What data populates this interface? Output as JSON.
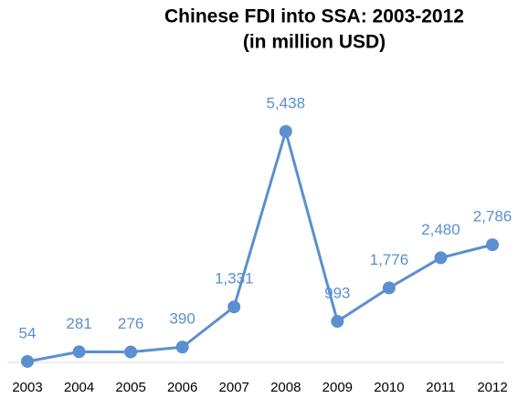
{
  "chart_data": {
    "type": "line",
    "title": "Chinese FDI into SSA: 2003-2012",
    "subtitle": "(in million USD)",
    "categories": [
      "2003",
      "2004",
      "2005",
      "2006",
      "2007",
      "2008",
      "2009",
      "2010",
      "2011",
      "2012"
    ],
    "values": [
      54,
      281,
      276,
      390,
      1331,
      5438,
      993,
      1776,
      2480,
      2786
    ],
    "value_labels": [
      "54",
      "281",
      "276",
      "390",
      "1,331",
      "5,438",
      "993",
      "1,776",
      "2,480",
      "2,786"
    ],
    "color": "#5b8fd0"
  }
}
